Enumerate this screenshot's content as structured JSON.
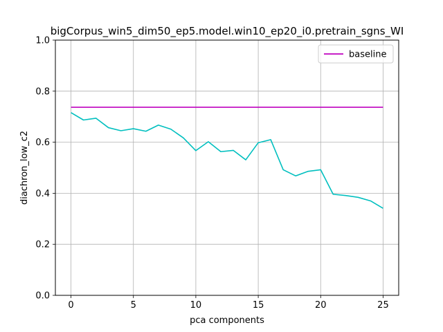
{
  "chart_data": {
    "type": "line",
    "title": "bigCorpus_win5_dim50_ep5.model.win10_ep20_i0.pretrain_sgns_WI",
    "xlabel": "pca components",
    "ylabel": "diachron_low_c2",
    "xlim": [
      -1.25,
      26.25
    ],
    "ylim": [
      0.0,
      1.0
    ],
    "xticks": [
      0,
      5,
      10,
      15,
      20,
      25
    ],
    "yticks": [
      0.0,
      0.2,
      0.4,
      0.6,
      0.8,
      1.0
    ],
    "xtick_labels": [
      "0",
      "5",
      "10",
      "15",
      "20",
      "25"
    ],
    "ytick_labels": [
      "0.0",
      "0.2",
      "0.4",
      "0.6",
      "0.8",
      "1.0"
    ],
    "grid": true,
    "legend_position": "top-right",
    "series": [
      {
        "name": "baseline",
        "color": "#bf00bf",
        "x": [
          0,
          25
        ],
        "y": [
          0.737,
          0.737
        ]
      },
      {
        "color": "#00bfbf",
        "x": [
          0,
          1,
          2,
          3,
          4,
          5,
          6,
          7,
          8,
          9,
          10,
          11,
          12,
          13,
          14,
          15,
          16,
          17,
          18,
          19,
          20,
          21,
          22,
          23,
          24,
          25
        ],
        "y": [
          0.716,
          0.687,
          0.694,
          0.657,
          0.645,
          0.653,
          0.643,
          0.667,
          0.651,
          0.617,
          0.567,
          0.602,
          0.563,
          0.568,
          0.531,
          0.598,
          0.61,
          0.492,
          0.468,
          0.486,
          0.492,
          0.396,
          0.391,
          0.384,
          0.37,
          0.341
        ]
      }
    ]
  }
}
